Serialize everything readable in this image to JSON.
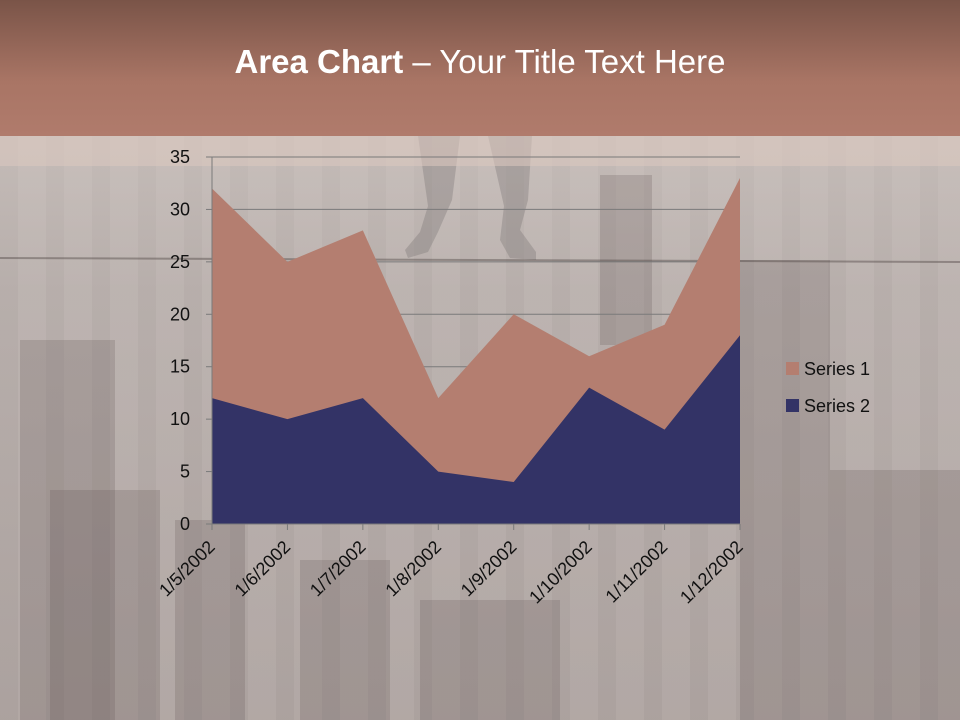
{
  "slide": {
    "title_bold": "Area Chart",
    "title_rest": " – Your Title Text Here"
  },
  "colors": {
    "series1": "#b47e70",
    "series2": "#333366",
    "header": "#a97565"
  },
  "chart_data": {
    "type": "area",
    "categories": [
      "1/5/2002",
      "1/6/2002",
      "1/7/2002",
      "1/8/2002",
      "1/9/2002",
      "1/10/2002",
      "1/11/2002",
      "1/12/2002"
    ],
    "series": [
      {
        "name": "Series 1",
        "values": [
          32,
          25,
          28,
          12,
          20,
          16,
          19,
          33
        ]
      },
      {
        "name": "Series 2",
        "values": [
          12,
          10,
          12,
          5,
          4,
          13,
          9,
          18
        ]
      }
    ],
    "yticks": [
      0,
      5,
      10,
      15,
      20,
      25,
      30,
      35
    ],
    "ylim": [
      0,
      35
    ],
    "grid": true,
    "legend": "right"
  }
}
